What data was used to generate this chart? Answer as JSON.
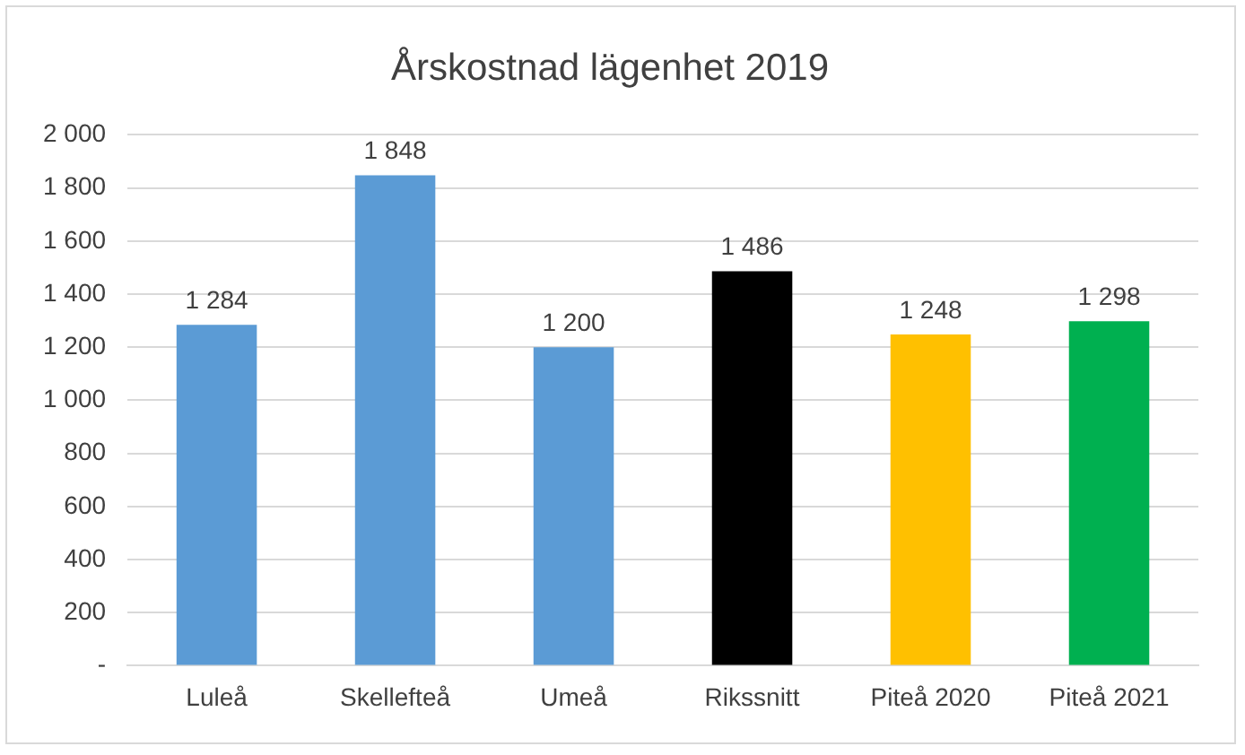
{
  "chart_data": {
    "type": "bar",
    "title": "Årskostnad lägenhet 2019",
    "categories": [
      "Luleå",
      "Skellefteå",
      "Umeå",
      "Rikssnitt",
      "Piteå 2020",
      "Piteå 2021"
    ],
    "values": [
      1284,
      1848,
      1200,
      1486,
      1248,
      1298
    ],
    "colors": [
      "#5b9bd5",
      "#5b9bd5",
      "#5b9bd5",
      "#000000",
      "#ffc000",
      "#00b050"
    ],
    "value_labels": [
      "1 284",
      "1 848",
      "1 200",
      "1 486",
      "1 248",
      "1 298"
    ],
    "ylim": [
      0,
      2000
    ],
    "yticks": [
      {
        "value": 0,
        "label": "-"
      },
      {
        "value": 200,
        "label": "200"
      },
      {
        "value": 400,
        "label": "400"
      },
      {
        "value": 600,
        "label": "600"
      },
      {
        "value": 800,
        "label": "800"
      },
      {
        "value": 1000,
        "label": "1 000"
      },
      {
        "value": 1200,
        "label": "1 200"
      },
      {
        "value": 1400,
        "label": "1 400"
      },
      {
        "value": 1600,
        "label": "1 600"
      },
      {
        "value": 1800,
        "label": "1 800"
      },
      {
        "value": 2000,
        "label": "2 000"
      }
    ],
    "grid": "y",
    "legend": false
  }
}
